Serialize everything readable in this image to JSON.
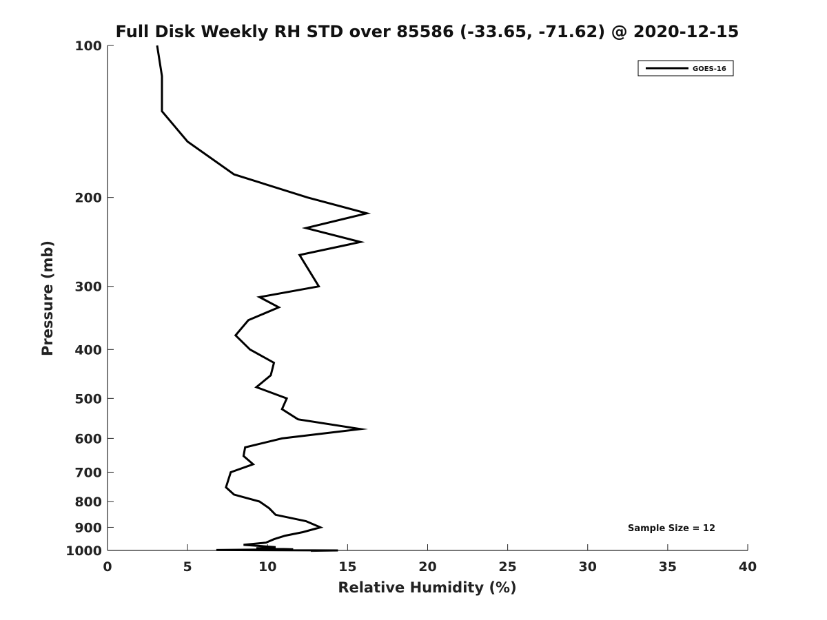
{
  "chart_data": {
    "type": "line",
    "title": "Full Disk Weekly RH STD over 85586 (-33.65, -71.62) @ 2020-12-15",
    "xlabel": "Relative Humidity (%)",
    "ylabel": "Pressure (mb)",
    "xlim": [
      0,
      40
    ],
    "ylim": [
      100,
      1000
    ],
    "y_scale": "log",
    "y_reversed": true,
    "x_ticks": [
      0,
      5,
      10,
      15,
      20,
      25,
      30,
      35,
      40
    ],
    "y_ticks": [
      100,
      200,
      300,
      400,
      500,
      600,
      700,
      800,
      900,
      1000
    ],
    "grid": false,
    "legend": "top-right",
    "series": [
      {
        "name": "GOES-16",
        "color": "#000000",
        "points": [
          [
            3.1,
            100
          ],
          [
            3.4,
            115
          ],
          [
            3.4,
            135
          ],
          [
            5.0,
            155
          ],
          [
            7.9,
            180
          ],
          [
            12.5,
            200
          ],
          [
            16.2,
            215
          ],
          [
            12.4,
            230
          ],
          [
            15.8,
            245
          ],
          [
            12.0,
            260
          ],
          [
            13.2,
            300
          ],
          [
            9.5,
            315
          ],
          [
            10.7,
            330
          ],
          [
            8.8,
            350
          ],
          [
            8.0,
            375
          ],
          [
            8.9,
            400
          ],
          [
            10.4,
            425
          ],
          [
            10.2,
            450
          ],
          [
            9.3,
            475
          ],
          [
            11.2,
            500
          ],
          [
            10.9,
            525
          ],
          [
            11.9,
            550
          ],
          [
            15.8,
            575
          ],
          [
            10.9,
            600
          ],
          [
            8.6,
            625
          ],
          [
            8.5,
            650
          ],
          [
            9.1,
            675
          ],
          [
            7.7,
            700
          ],
          [
            7.4,
            750
          ],
          [
            7.9,
            775
          ],
          [
            9.5,
            800
          ],
          [
            10.1,
            825
          ],
          [
            10.5,
            850
          ],
          [
            12.4,
            875
          ],
          [
            13.3,
            900
          ],
          [
            12.2,
            920
          ],
          [
            11.1,
            935
          ],
          [
            10.4,
            950
          ],
          [
            9.9,
            965
          ],
          [
            8.5,
            975
          ],
          [
            10.5,
            985
          ],
          [
            9.3,
            990
          ],
          [
            11.6,
            995
          ],
          [
            6.8,
            998
          ],
          [
            14.4,
            1000
          ],
          [
            12.7,
            1002
          ]
        ]
      }
    ],
    "annotation": "Sample Size = 12"
  }
}
